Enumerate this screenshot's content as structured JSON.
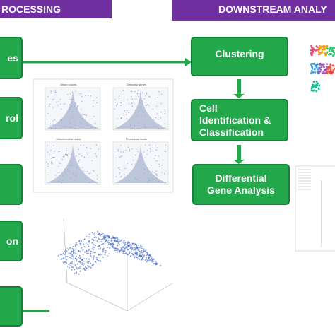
{
  "headers": {
    "left": "ROCESSING",
    "right": "DOWNSTREAM ANALY"
  },
  "left_steps": [
    "es",
    "rol",
    "on"
  ],
  "right_steps": [
    "Clustering",
    "Cell Identification & Classification",
    "Differential Gene Analysis"
  ],
  "qc_panel": {
    "titles": [
      "Mean counts",
      "Detected genes",
      "Mitochondrial reads",
      "Ribosomal reads"
    ]
  }
}
